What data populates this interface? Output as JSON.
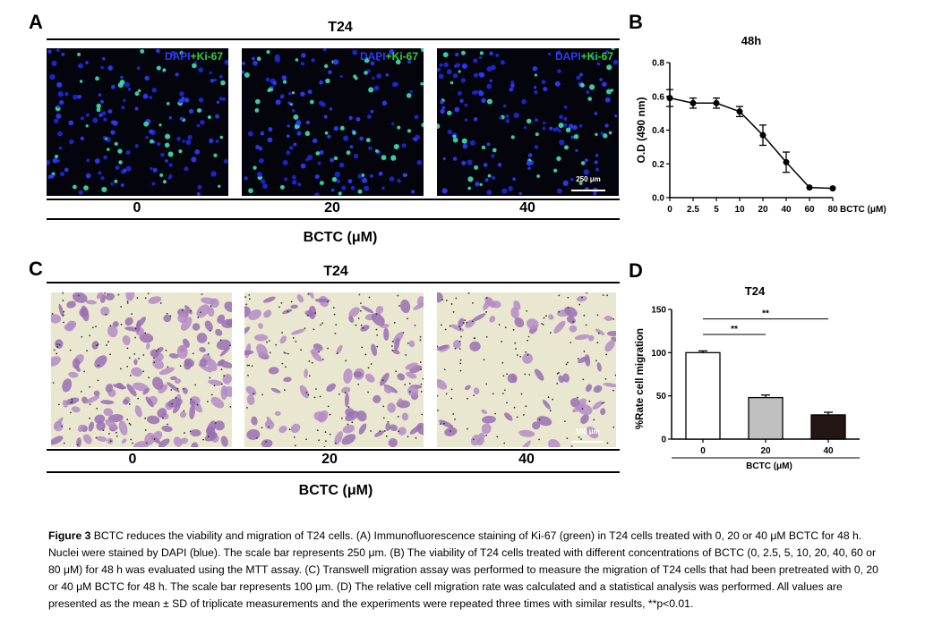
{
  "panel_a": {
    "label": "A",
    "cell_line": "T24",
    "image_overlay": {
      "dapi": "DAPI",
      "ki": "+Ki-67"
    },
    "concentrations": [
      "0",
      "20",
      "40"
    ],
    "scale_bar": "250 μm",
    "xlabel": "BCTC (μM)"
  },
  "panel_b": {
    "label": "B"
  },
  "panel_c": {
    "label": "C",
    "cell_line": "T24",
    "concentrations": [
      "0",
      "20",
      "40"
    ],
    "scale_bar": "100 μm",
    "xlabel": "BCTC (μM)"
  },
  "panel_d": {
    "label": "D"
  },
  "chart_data": [
    {
      "type": "line",
      "title": "48h",
      "ylabel": "O.D (490 nm)",
      "xlabel": "BCTC (μM)",
      "categories": [
        "0",
        "2.5",
        "5",
        "10",
        "20",
        "40",
        "60",
        "80"
      ],
      "values": [
        0.59,
        0.56,
        0.56,
        0.51,
        0.37,
        0.21,
        0.06,
        0.055
      ],
      "errors": [
        0.05,
        0.03,
        0.03,
        0.03,
        0.06,
        0.06,
        0.0,
        0.0
      ],
      "ylim": [
        0,
        0.8
      ],
      "yticks": [
        "0.0",
        "0.2",
        "0.4",
        "0.6",
        "0.8"
      ]
    },
    {
      "type": "bar",
      "title": "T24",
      "ylabel": "%Rate cell migration",
      "xlabel": "BCTC (μM)",
      "categories": [
        "0",
        "20",
        "40"
      ],
      "values": [
        100,
        48,
        28
      ],
      "errors": [
        2,
        3,
        3
      ],
      "bar_colors": [
        "#ffffff",
        "#c0c0c0",
        "#241614"
      ],
      "ylim": [
        0,
        150
      ],
      "yticks": [
        "0",
        "50",
        "100",
        "150"
      ],
      "significance": [
        {
          "from": "0",
          "to": "20",
          "label": "**"
        },
        {
          "from": "0",
          "to": "40",
          "label": "**"
        }
      ]
    }
  ],
  "caption": {
    "fig": "Figure 3",
    "text": " BCTC reduces the viability and migration of T24 cells. (A) Immunofluorescence staining of Ki-67 (green) in T24 cells treated with 0, 20 or 40 μM BCTC for 48 h. Nuclei were stained by DAPI (blue). The scale bar represents 250 μm. (B) The viability of T24 cells treated with different concentrations of BCTC (0, 2.5, 5, 10, 20, 40, 60 or 80 μM) for 48 h was evaluated using the MTT assay. (C) Transwell migration assay was performed to measure the migration of T24 cells that had been pretreated with 0, 20 or 40 μM BCTC for 48 h. The scale bar represents 100 μm. (D) The relative cell migration rate was calculated and a statistical analysis was performed. All values are presented as the mean ± SD of triplicate measurements and the experiments were repeated three times with similar results, **p<0.01."
  }
}
